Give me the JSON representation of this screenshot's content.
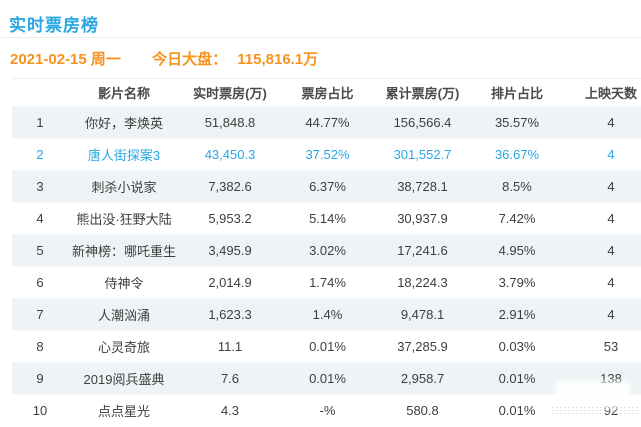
{
  "page": {
    "title": "实时票房榜",
    "date": "2021-02-15 周一",
    "market_label": "今日大盘：",
    "market_value": "115,816.1万"
  },
  "table": {
    "headers": [
      "影片名称",
      "实时票房(万)",
      "票房占比",
      "累计票房(万)",
      "排片占比",
      "上映天数"
    ],
    "rows": [
      {
        "rank": "1",
        "name": "你好，李焕英",
        "realtime": "51,848.8",
        "share": "44.77%",
        "cumulative": "156,566.4",
        "screening": "35.57%",
        "days": "4",
        "highlighted": false
      },
      {
        "rank": "2",
        "name": "唐人街探案3",
        "realtime": "43,450.3",
        "share": "37.52%",
        "cumulative": "301,552.7",
        "screening": "36.67%",
        "days": "4",
        "highlighted": true
      },
      {
        "rank": "3",
        "name": "刺杀小说家",
        "realtime": "7,382.6",
        "share": "6.37%",
        "cumulative": "38,728.1",
        "screening": "8.5%",
        "days": "4",
        "highlighted": false
      },
      {
        "rank": "4",
        "name": "熊出没·狂野大陆",
        "realtime": "5,953.2",
        "share": "5.14%",
        "cumulative": "30,937.9",
        "screening": "7.42%",
        "days": "4",
        "highlighted": false
      },
      {
        "rank": "5",
        "name": "新神榜：哪吒重生",
        "realtime": "3,495.9",
        "share": "3.02%",
        "cumulative": "17,241.6",
        "screening": "4.95%",
        "days": "4",
        "highlighted": false
      },
      {
        "rank": "6",
        "name": "侍神令",
        "realtime": "2,014.9",
        "share": "1.74%",
        "cumulative": "18,224.3",
        "screening": "3.79%",
        "days": "4",
        "highlighted": false
      },
      {
        "rank": "7",
        "name": "人潮汹涌",
        "realtime": "1,623.3",
        "share": "1.4%",
        "cumulative": "9,478.1",
        "screening": "2.91%",
        "days": "4",
        "highlighted": false
      },
      {
        "rank": "8",
        "name": "心灵奇旅",
        "realtime": "11.1",
        "share": "0.01%",
        "cumulative": "37,285.9",
        "screening": "0.03%",
        "days": "53",
        "highlighted": false
      },
      {
        "rank": "9",
        "name": "2019阅兵盛典",
        "realtime": "7.6",
        "share": "0.01%",
        "cumulative": "2,958.7",
        "screening": "0.01%",
        "days": "138",
        "highlighted": false
      },
      {
        "rank": "10",
        "name": "点点星光",
        "realtime": "4.3",
        "share": "-%",
        "cumulative": "580.8",
        "screening": "0.01%",
        "days": "92",
        "highlighted": false
      }
    ]
  },
  "colors": {
    "accent_blue": "#2aa7e3",
    "accent_orange": "#f7921e",
    "row_band_bg": "#eef3f5",
    "text_dark": "#3e3e3e"
  }
}
